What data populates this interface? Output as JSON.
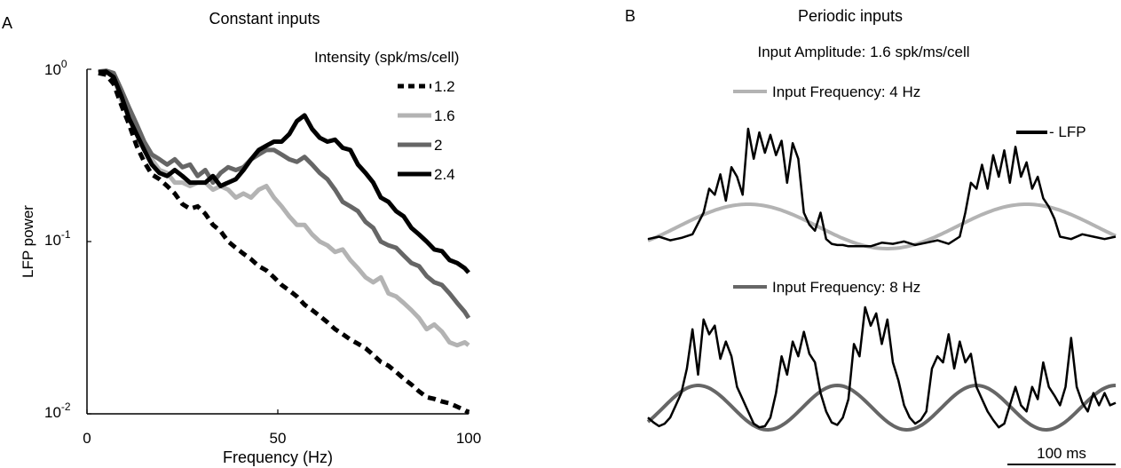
{
  "panels": {
    "a": {
      "letter": "A",
      "title": "Constant inputs"
    },
    "b": {
      "letter": "B",
      "title": "Periodic inputs"
    }
  },
  "chart_data": [
    {
      "type": "line",
      "title": "Constant inputs",
      "xlabel": "Frequency (Hz)",
      "ylabel": "LFP power",
      "yscale": "log",
      "xlim": [
        0,
        100
      ],
      "ylim": [
        0.01,
        1
      ],
      "x_ticks": [
        "0",
        "50",
        "100"
      ],
      "y_ticks": [
        {
          "value": 1,
          "base": "10",
          "exp": "0"
        },
        {
          "value": 0.1,
          "base": "10",
          "exp": "-1"
        },
        {
          "value": 0.01,
          "base": "10",
          "exp": "-2"
        }
      ],
      "legend_title": "Intensity (spk/ms/cell)",
      "legend_position": "top-right",
      "x": [
        3,
        5,
        7,
        9,
        11,
        13,
        15,
        17,
        19,
        21,
        23,
        25,
        27,
        29,
        31,
        33,
        35,
        37,
        39,
        41,
        43,
        45,
        47,
        49,
        51,
        53,
        55,
        57,
        59,
        61,
        63,
        65,
        67,
        69,
        71,
        73,
        75,
        77,
        79,
        81,
        83,
        85,
        87,
        89,
        91,
        93,
        95,
        97,
        99,
        100
      ],
      "series": [
        {
          "name": "1.2",
          "color": "#000000",
          "dash": true,
          "values": [
            0.95,
            0.93,
            0.82,
            0.62,
            0.48,
            0.36,
            0.29,
            0.245,
            0.23,
            0.21,
            0.19,
            0.165,
            0.155,
            0.16,
            0.145,
            0.125,
            0.115,
            0.1,
            0.092,
            0.085,
            0.079,
            0.072,
            0.068,
            0.062,
            0.056,
            0.052,
            0.048,
            0.043,
            0.04,
            0.037,
            0.034,
            0.031,
            0.029,
            0.027,
            0.0255,
            0.024,
            0.022,
            0.02,
            0.019,
            0.0175,
            0.016,
            0.0148,
            0.0135,
            0.0125,
            0.0122,
            0.0118,
            0.0115,
            0.011,
            0.0105,
            0.0102
          ]
        },
        {
          "name": "1.6",
          "color": "#b3b3b3",
          "values": [
            0.95,
            0.98,
            0.9,
            0.66,
            0.55,
            0.44,
            0.35,
            0.3,
            0.26,
            0.25,
            0.22,
            0.22,
            0.21,
            0.22,
            0.22,
            0.2,
            0.21,
            0.2,
            0.18,
            0.19,
            0.18,
            0.2,
            0.21,
            0.18,
            0.16,
            0.14,
            0.125,
            0.125,
            0.11,
            0.1,
            0.095,
            0.087,
            0.09,
            0.078,
            0.07,
            0.062,
            0.058,
            0.062,
            0.05,
            0.048,
            0.044,
            0.04,
            0.036,
            0.031,
            0.033,
            0.03,
            0.026,
            0.025,
            0.026,
            0.025
          ]
        },
        {
          "name": "2",
          "color": "#666666",
          "values": [
            0.97,
            0.98,
            0.95,
            0.76,
            0.6,
            0.48,
            0.38,
            0.32,
            0.3,
            0.28,
            0.3,
            0.27,
            0.28,
            0.24,
            0.26,
            0.22,
            0.25,
            0.27,
            0.26,
            0.27,
            0.3,
            0.32,
            0.34,
            0.34,
            0.32,
            0.3,
            0.29,
            0.31,
            0.28,
            0.25,
            0.23,
            0.2,
            0.17,
            0.16,
            0.15,
            0.13,
            0.12,
            0.1,
            0.095,
            0.092,
            0.083,
            0.075,
            0.072,
            0.063,
            0.058,
            0.056,
            0.05,
            0.044,
            0.039,
            0.036
          ]
        },
        {
          "name": "2.4",
          "color": "#000000",
          "values": [
            0.96,
            0.97,
            0.9,
            0.7,
            0.52,
            0.42,
            0.34,
            0.28,
            0.25,
            0.24,
            0.26,
            0.24,
            0.22,
            0.22,
            0.22,
            0.24,
            0.21,
            0.22,
            0.23,
            0.26,
            0.3,
            0.34,
            0.36,
            0.38,
            0.38,
            0.42,
            0.5,
            0.54,
            0.45,
            0.4,
            0.38,
            0.39,
            0.35,
            0.34,
            0.28,
            0.25,
            0.22,
            0.18,
            0.17,
            0.15,
            0.14,
            0.12,
            0.11,
            0.1,
            0.09,
            0.088,
            0.078,
            0.075,
            0.07,
            0.066
          ]
        }
      ]
    },
    {
      "type": "line",
      "title": "Periodic inputs",
      "subtitle": "Input Amplitude: 1.6 spk/ms/cell",
      "legend_lfp": "- LFP",
      "scale_bar_label": "100 ms",
      "x_unit": "ms",
      "panels": [
        {
          "label": "Input Frequency: 4 Hz",
          "input_color": "#b3b3b3",
          "input_frequency_hz": 4,
          "t": [
            0,
            10,
            20,
            30,
            40,
            50,
            55,
            60,
            65,
            70,
            75,
            80,
            85,
            90,
            95,
            100,
            105,
            110,
            115,
            120,
            125,
            130,
            135,
            140,
            145,
            150,
            155,
            160,
            165,
            170,
            175,
            180,
            190,
            200,
            210,
            220,
            230,
            240,
            250,
            260,
            270,
            280,
            285,
            290,
            295,
            300,
            305,
            310,
            315,
            320,
            325,
            330,
            335,
            340,
            345,
            350,
            355,
            360,
            365,
            370,
            380,
            390,
            400,
            410,
            420
          ],
          "lfp": [
            0.08,
            0.1,
            0.07,
            0.09,
            0.12,
            0.3,
            0.5,
            0.45,
            0.62,
            0.4,
            0.68,
            0.6,
            0.45,
            1.0,
            0.75,
            0.97,
            0.8,
            0.95,
            0.78,
            0.9,
            0.55,
            0.88,
            0.75,
            0.3,
            0.2,
            0.15,
            0.3,
            0.08,
            0.04,
            0.03,
            0.03,
            0.02,
            0.02,
            0.02,
            0.05,
            0.04,
            0.06,
            0.03,
            0.05,
            0.07,
            0.04,
            0.1,
            0.3,
            0.55,
            0.5,
            0.7,
            0.5,
            0.78,
            0.6,
            0.82,
            0.55,
            0.85,
            0.6,
            0.72,
            0.5,
            0.6,
            0.42,
            0.35,
            0.25,
            0.1,
            0.08,
            0.12,
            0.1,
            0.08,
            0.1
          ]
        },
        {
          "label": "Input Frequency: 8 Hz",
          "input_color": "#666666",
          "input_frequency_hz": 8,
          "t": [
            0,
            5,
            10,
            15,
            20,
            25,
            30,
            35,
            40,
            45,
            50,
            55,
            60,
            65,
            70,
            75,
            80,
            85,
            90,
            95,
            100,
            105,
            110,
            115,
            120,
            125,
            130,
            135,
            140,
            145,
            150,
            155,
            160,
            165,
            170,
            175,
            180,
            185,
            190,
            195,
            200,
            205,
            210,
            215,
            220,
            225,
            230,
            235,
            240,
            245,
            250,
            255,
            260,
            265,
            270,
            275,
            280,
            285,
            290,
            295,
            300,
            305,
            310,
            315,
            320,
            325,
            330,
            335,
            340,
            345,
            350,
            355,
            360,
            365,
            370,
            375,
            380,
            385,
            390,
            395,
            400,
            405,
            410,
            415,
            420
          ],
          "lfp": [
            0.1,
            0.06,
            0.03,
            0.05,
            0.1,
            0.2,
            0.3,
            0.5,
            0.82,
            0.45,
            0.9,
            0.78,
            0.85,
            0.58,
            0.72,
            0.6,
            0.35,
            0.25,
            0.15,
            0.05,
            0.02,
            0.03,
            0.1,
            0.3,
            0.6,
            0.45,
            0.72,
            0.6,
            0.8,
            0.62,
            0.55,
            0.3,
            0.15,
            0.06,
            0.04,
            0.1,
            0.25,
            0.7,
            0.6,
            1.0,
            0.85,
            0.95,
            0.7,
            0.9,
            0.55,
            0.4,
            0.2,
            0.1,
            0.05,
            0.08,
            0.15,
            0.5,
            0.6,
            0.55,
            0.78,
            0.5,
            0.72,
            0.55,
            0.62,
            0.35,
            0.25,
            0.15,
            0.08,
            0.02,
            0.05,
            0.2,
            0.35,
            0.2,
            0.15,
            0.35,
            0.25,
            0.55,
            0.35,
            0.28,
            0.2,
            0.35,
            0.75,
            0.35,
            0.22,
            0.15,
            0.3,
            0.2,
            0.3,
            0.2,
            0.22
          ]
        }
      ]
    }
  ]
}
